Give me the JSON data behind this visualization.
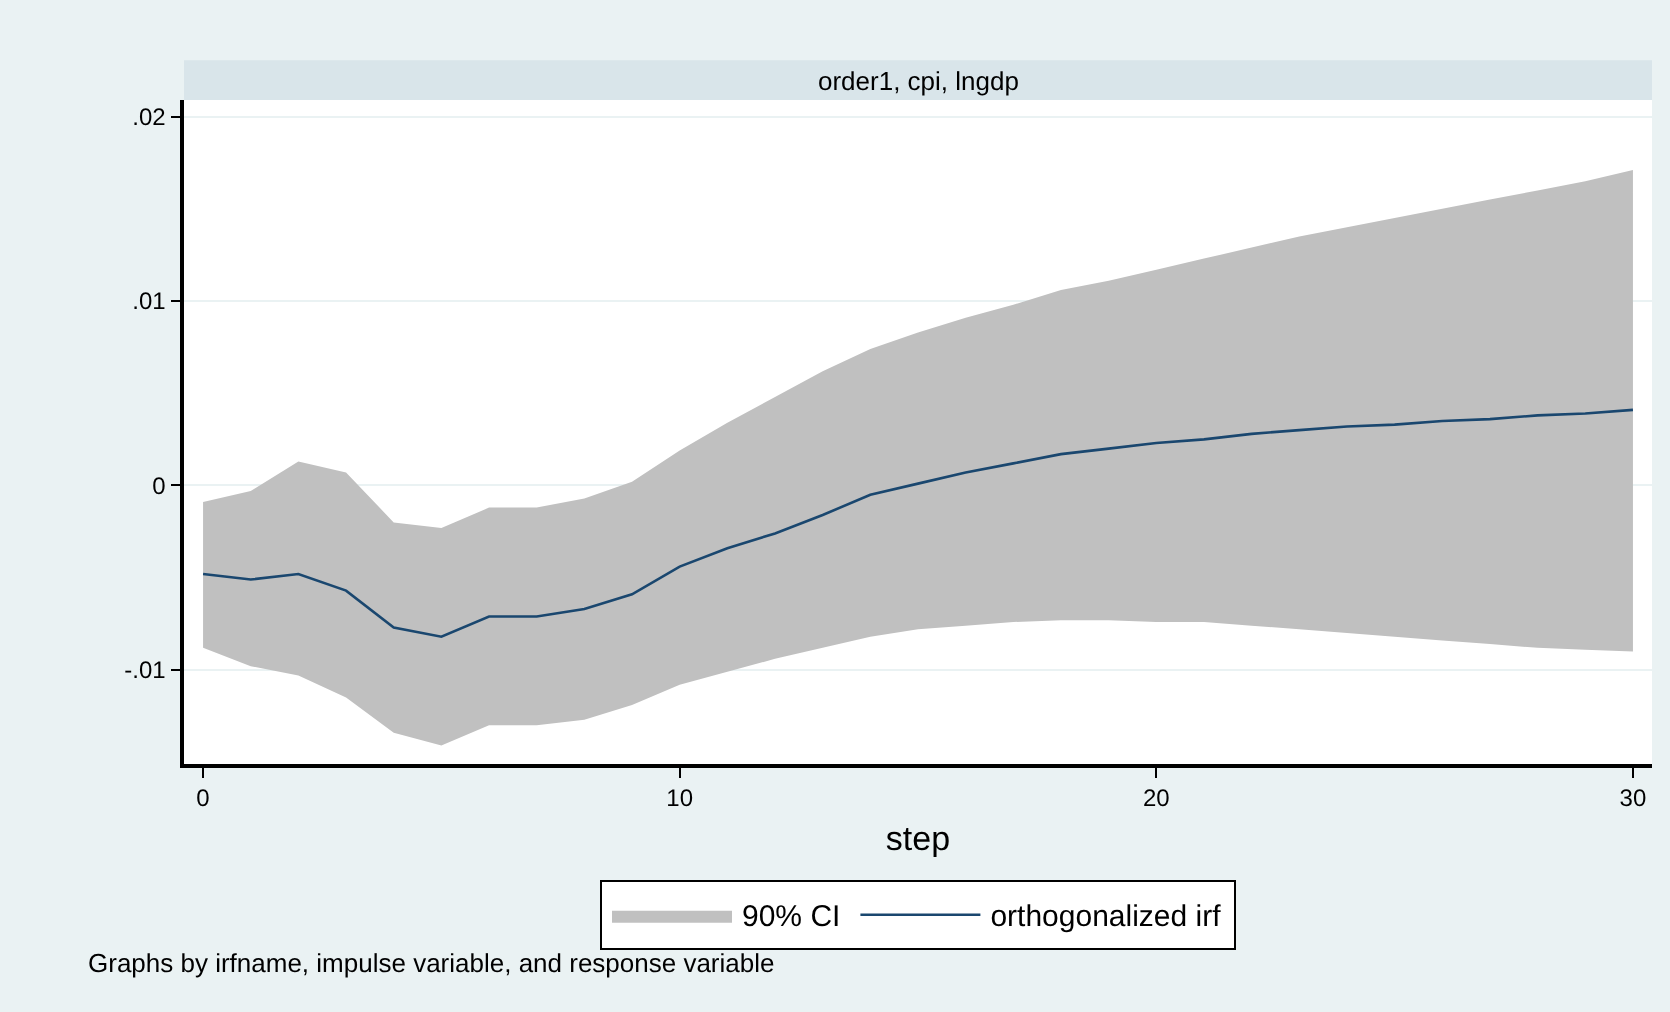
{
  "chart_data": {
    "type": "line",
    "title": "order1, cpi, lngdp",
    "xlabel": "step",
    "annotations": [
      "Graphs by irfname, impulse variable, and response variable"
    ],
    "x": [
      0,
      1,
      2,
      3,
      4,
      5,
      6,
      7,
      8,
      9,
      10,
      11,
      12,
      13,
      14,
      15,
      16,
      17,
      18,
      19,
      20,
      21,
      22,
      23,
      24,
      25,
      26,
      27,
      28,
      29,
      30
    ],
    "series": [
      {
        "name": "90% CI",
        "type": "area",
        "color": "#c0c0c0",
        "values": [
          null,
          null,
          null,
          null,
          null,
          null,
          null,
          null,
          null,
          null,
          null,
          null,
          null,
          null,
          null,
          null,
          null,
          null,
          null,
          null,
          null,
          null,
          null,
          null,
          null,
          null,
          null,
          null,
          null,
          null,
          null
        ],
        "lower": [
          -0.0088,
          -0.0098,
          -0.0103,
          -0.0115,
          -0.0134,
          -0.0141,
          -0.013,
          -0.013,
          -0.0127,
          -0.0119,
          -0.0108,
          -0.0101,
          -0.0094,
          -0.0088,
          -0.0082,
          -0.0078,
          -0.0076,
          -0.0074,
          -0.0073,
          -0.0073,
          -0.0074,
          -0.0074,
          -0.0076,
          -0.0078,
          -0.008,
          -0.0082,
          -0.0084,
          -0.0086,
          -0.0088,
          -0.0089,
          -0.009
        ],
        "upper": [
          -0.0009,
          -0.0003,
          0.0013,
          0.0007,
          -0.002,
          -0.0023,
          -0.0012,
          -0.0012,
          -0.0007,
          0.0002,
          0.0019,
          0.0034,
          0.0048,
          0.0062,
          0.0074,
          0.0083,
          0.0091,
          0.0098,
          0.0106,
          0.0111,
          0.0117,
          0.0123,
          0.0129,
          0.0135,
          0.014,
          0.0145,
          0.015,
          0.0155,
          0.016,
          0.0165,
          0.0171
        ]
      },
      {
        "name": "orthogonalized irf",
        "color": "#1a476f",
        "values": [
          -0.0048,
          -0.0051,
          -0.0048,
          -0.0057,
          -0.0077,
          -0.0082,
          -0.0071,
          -0.0071,
          -0.0067,
          -0.0059,
          -0.0044,
          -0.0034,
          -0.0026,
          -0.0016,
          -0.0005,
          0.0001,
          0.0007,
          0.0012,
          0.0017,
          0.002,
          0.0023,
          0.0025,
          0.0028,
          0.003,
          0.0032,
          0.0033,
          0.0035,
          0.0036,
          0.0038,
          0.0039,
          0.0041
        ]
      }
    ],
    "xlim": [
      -0.4,
      30.4
    ],
    "xticks": [
      0,
      10,
      20,
      30
    ],
    "ylim": [
      -0.0151,
      0.0209
    ],
    "yticks": [
      {
        "value": -0.01,
        "label": "-.01"
      },
      {
        "value": 0,
        "label": "0"
      },
      {
        "value": 0.01,
        "label": ".01"
      },
      {
        "value": 0.02,
        "label": ".02"
      }
    ],
    "grid": "y",
    "legend": "bottom",
    "marker": "none",
    "line_style": "solid"
  }
}
